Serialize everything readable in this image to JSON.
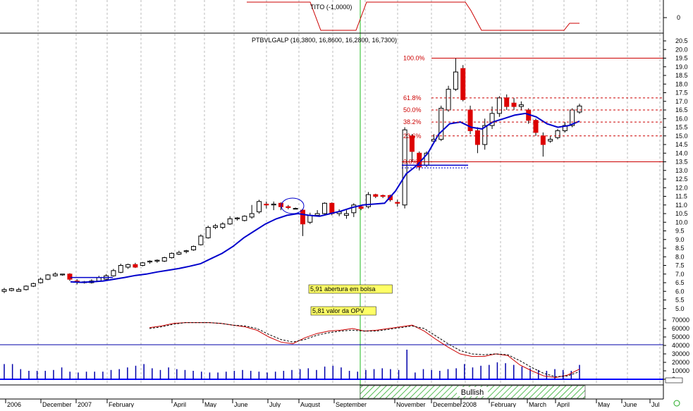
{
  "chart_data": [
    {
      "type": "line",
      "title": "TITO (-1,0000)",
      "yaxis_labels": [
        "0"
      ],
      "x": [
        "Dec 2006",
        "Jan 2007",
        "Feb 2007",
        "Mar 2007",
        "Apr 2007",
        "May 2007",
        "Jun 2007",
        "Jul 2007",
        "Aug 2007",
        "Sep 2007",
        "Oct 2007",
        "Nov 2007",
        "Dec 2007",
        "Jan 2008",
        "Feb 2008",
        "Mar 2008",
        "Apr 2008"
      ],
      "series": [
        {
          "values": [
            1,
            1,
            1,
            1,
            1,
            1,
            1,
            1,
            -1,
            -1,
            -1,
            1,
            1,
            -1,
            -1,
            -1,
            -1
          ],
          "color": "#cc0000"
        }
      ]
    },
    {
      "type": "candlestick",
      "title": "PTBVLGALP (16,3800, 16,8600, 16,2800, 16,7300)",
      "ylim": [
        4.5,
        20.5
      ],
      "yticks": [
        "20.5",
        "20.0",
        "19.5",
        "19.0",
        "18.5",
        "18.0",
        "17.5",
        "17.0",
        "16.5",
        "16.0",
        "15.5",
        "15.0",
        "14.5",
        "14.0",
        "13.5",
        "13.0",
        "12.5",
        "12.0",
        "11.5",
        "11.0",
        "10.5",
        "10.0",
        "9.5",
        "9.0",
        "8.5",
        "8.0",
        "7.5",
        "7.0",
        "6.5",
        "6.0",
        "5.5",
        "5.0"
      ],
      "x_labels": [
        "2006",
        "December",
        "2007",
        "February",
        "April",
        "May",
        "June",
        "July",
        "August",
        "September",
        "November",
        "December",
        "2008",
        "February",
        "March",
        "April",
        "May",
        "June",
        "Jul"
      ],
      "candles": [
        {
          "o": 6.0,
          "c": 6.1,
          "h": 6.2,
          "l": 5.9
        },
        {
          "o": 6.05,
          "c": 6.15,
          "h": 6.2,
          "l": 6.0
        },
        {
          "o": 6.0,
          "c": 6.1,
          "h": 6.2,
          "l": 6.0
        },
        {
          "o": 6.1,
          "c": 6.3,
          "h": 6.35,
          "l": 6.05
        },
        {
          "o": 6.3,
          "c": 6.45,
          "h": 6.5,
          "l": 6.25
        },
        {
          "o": 6.5,
          "c": 6.7,
          "h": 6.8,
          "l": 6.45
        },
        {
          "o": 6.7,
          "c": 6.95,
          "h": 7.0,
          "l": 6.65
        },
        {
          "o": 6.9,
          "c": 7.0,
          "h": 7.1,
          "l": 6.85
        },
        {
          "o": 6.95,
          "c": 7.0,
          "h": 7.0,
          "l": 6.9
        },
        {
          "o": 7.0,
          "c": 6.7,
          "h": 7.05,
          "l": 6.6
        },
        {
          "o": 6.6,
          "c": 6.55,
          "h": 6.7,
          "l": 6.4
        },
        {
          "o": 6.5,
          "c": 6.55,
          "h": 6.6,
          "l": 6.45
        },
        {
          "o": 6.5,
          "c": 6.6,
          "h": 6.7,
          "l": 6.45
        },
        {
          "o": 6.6,
          "c": 6.8,
          "h": 6.9,
          "l": 6.55
        },
        {
          "o": 6.7,
          "c": 6.9,
          "h": 7.0,
          "l": 6.65
        },
        {
          "o": 6.9,
          "c": 7.2,
          "h": 7.3,
          "l": 6.85
        },
        {
          "o": 7.1,
          "c": 7.5,
          "h": 7.6,
          "l": 7.05
        },
        {
          "o": 7.4,
          "c": 7.55,
          "h": 7.6,
          "l": 7.3
        },
        {
          "o": 7.55,
          "c": 7.4,
          "h": 7.65,
          "l": 7.35
        },
        {
          "o": 7.5,
          "c": 7.65,
          "h": 7.7,
          "l": 7.45
        },
        {
          "o": 7.7,
          "c": 7.75,
          "h": 7.8,
          "l": 7.6
        },
        {
          "o": 7.75,
          "c": 7.8,
          "h": 7.85,
          "l": 7.65
        },
        {
          "o": 7.75,
          "c": 7.95,
          "h": 8.0,
          "l": 7.7
        },
        {
          "o": 7.95,
          "c": 8.2,
          "h": 8.25,
          "l": 7.9
        },
        {
          "o": 8.15,
          "c": 8.25,
          "h": 8.35,
          "l": 8.1
        },
        {
          "o": 8.3,
          "c": 8.35,
          "h": 8.4,
          "l": 8.2
        },
        {
          "o": 8.4,
          "c": 8.6,
          "h": 8.65,
          "l": 8.35
        },
        {
          "o": 8.7,
          "c": 9.2,
          "h": 9.3,
          "l": 8.65
        },
        {
          "o": 9.1,
          "c": 9.7,
          "h": 9.8,
          "l": 9.05
        },
        {
          "o": 9.7,
          "c": 9.8,
          "h": 9.9,
          "l": 9.6
        },
        {
          "o": 9.7,
          "c": 9.9,
          "h": 10.0,
          "l": 9.6
        },
        {
          "o": 9.9,
          "c": 10.2,
          "h": 10.35,
          "l": 9.85
        },
        {
          "o": 10.2,
          "c": 10.25,
          "h": 10.3,
          "l": 10.1
        },
        {
          "o": 10.1,
          "c": 10.35,
          "h": 10.4,
          "l": 10.05
        },
        {
          "o": 10.3,
          "c": 10.5,
          "h": 11.0,
          "l": 10.2
        },
        {
          "o": 10.6,
          "c": 11.2,
          "h": 11.3,
          "l": 10.5
        },
        {
          "o": 11.05,
          "c": 11.0,
          "h": 11.2,
          "l": 10.8
        },
        {
          "o": 11.0,
          "c": 11.05,
          "h": 11.2,
          "l": 10.7
        },
        {
          "o": 11.1,
          "c": 10.9,
          "h": 11.15,
          "l": 10.7
        },
        {
          "o": 10.9,
          "c": 10.85,
          "h": 11.0,
          "l": 10.75
        },
        {
          "o": 10.8,
          "c": 10.8,
          "h": 10.85,
          "l": 10.75
        },
        {
          "o": 10.7,
          "c": 9.9,
          "h": 10.75,
          "l": 9.2
        },
        {
          "o": 10.0,
          "c": 10.4,
          "h": 10.55,
          "l": 9.9
        },
        {
          "o": 10.4,
          "c": 10.5,
          "h": 10.7,
          "l": 10.35
        },
        {
          "o": 10.5,
          "c": 11.1,
          "h": 11.15,
          "l": 10.4
        },
        {
          "o": 11.1,
          "c": 10.5,
          "h": 11.15,
          "l": 10.4
        },
        {
          "o": 10.5,
          "c": 10.6,
          "h": 10.75,
          "l": 10.35
        },
        {
          "o": 10.4,
          "c": 10.5,
          "h": 10.7,
          "l": 10.2
        },
        {
          "o": 10.55,
          "c": 11.0,
          "h": 11.1,
          "l": 10.3
        },
        {
          "o": 10.9,
          "c": 10.8,
          "h": 11.0,
          "l": 10.7
        },
        {
          "o": 10.9,
          "c": 11.6,
          "h": 11.75,
          "l": 10.8
        },
        {
          "o": 11.6,
          "c": 11.5,
          "h": 11.65,
          "l": 11.4
        },
        {
          "o": 11.55,
          "c": 11.5,
          "h": 11.6,
          "l": 11.4
        },
        {
          "o": 11.55,
          "c": 11.3,
          "h": 11.6,
          "l": 11.2
        },
        {
          "o": 11.15,
          "c": 11.1,
          "h": 11.3,
          "l": 10.9
        },
        {
          "o": 11.0,
          "c": 15.35,
          "h": 15.5,
          "l": 10.8
        },
        {
          "o": 15.0,
          "c": 14.1,
          "h": 15.1,
          "l": 13.5
        },
        {
          "o": 14.0,
          "c": 13.2,
          "h": 14.1,
          "l": 13.0
        },
        {
          "o": 13.3,
          "c": 14.0,
          "h": 14.1,
          "l": 13.2
        },
        {
          "o": 14.7,
          "c": 14.8,
          "h": 15.1,
          "l": 14.6
        },
        {
          "o": 14.8,
          "c": 16.6,
          "h": 16.75,
          "l": 14.7
        },
        {
          "o": 16.5,
          "c": 17.7,
          "h": 17.9,
          "l": 16.4
        },
        {
          "o": 17.7,
          "c": 18.7,
          "h": 19.5,
          "l": 17.6
        },
        {
          "o": 18.9,
          "c": 17.1,
          "h": 19.1,
          "l": 17.0
        },
        {
          "o": 16.5,
          "c": 15.3,
          "h": 16.75,
          "l": 15.1
        },
        {
          "o": 15.3,
          "c": 14.5,
          "h": 15.5,
          "l": 14.0
        },
        {
          "o": 14.5,
          "c": 15.6,
          "h": 16.0,
          "l": 14.2
        },
        {
          "o": 15.6,
          "c": 16.3,
          "h": 16.7,
          "l": 15.4
        },
        {
          "o": 16.3,
          "c": 17.2,
          "h": 17.3,
          "l": 16.1
        },
        {
          "o": 17.2,
          "c": 16.7,
          "h": 17.4,
          "l": 16.5
        },
        {
          "o": 16.9,
          "c": 16.7,
          "h": 17.2,
          "l": 16.5
        },
        {
          "o": 16.7,
          "c": 16.8,
          "h": 17.0,
          "l": 16.5
        },
        {
          "o": 16.5,
          "c": 15.9,
          "h": 16.6,
          "l": 15.7
        },
        {
          "o": 15.9,
          "c": 15.2,
          "h": 16.0,
          "l": 15.0
        },
        {
          "o": 15.0,
          "c": 14.5,
          "h": 15.2,
          "l": 13.8
        },
        {
          "o": 14.7,
          "c": 14.8,
          "h": 15.0,
          "l": 14.6
        },
        {
          "o": 14.9,
          "c": 15.3,
          "h": 15.4,
          "l": 14.8
        },
        {
          "o": 15.3,
          "c": 15.6,
          "h": 15.8,
          "l": 15.2
        },
        {
          "o": 15.6,
          "c": 16.5,
          "h": 16.6,
          "l": 15.5
        },
        {
          "o": 16.38,
          "c": 16.73,
          "h": 16.86,
          "l": 16.28
        }
      ],
      "moving_average": [
        6.55,
        6.52,
        6.55,
        6.6,
        6.7,
        6.8,
        6.92,
        7.0,
        7.12,
        7.22,
        7.32,
        7.45,
        7.6,
        7.9,
        8.2,
        8.6,
        9.1,
        9.5,
        9.9,
        10.2,
        10.4,
        10.5,
        10.4,
        10.35,
        10.5,
        10.65,
        10.85,
        11.0,
        11.05,
        11.1,
        11.8,
        12.8,
        13.3,
        14.0,
        15.1,
        15.7,
        15.8,
        15.5,
        15.4,
        15.8,
        16.0,
        16.2,
        16.3,
        16.1,
        15.7,
        15.5,
        15.6,
        15.85
      ],
      "fibonacci": {
        "levels": [
          {
            "label": "100.0%",
            "value": 19.5
          },
          {
            "label": "61.8%",
            "value": 17.2
          },
          {
            "label": "50.0%",
            "value": 16.5
          },
          {
            "label": "38.2%",
            "value": 15.8
          },
          {
            "label": "23.6%",
            "value": 15.0
          },
          {
            "label": "0.0%",
            "value": 13.5
          }
        ]
      },
      "reference_lines": [
        {
          "label": "5,91 abertura em bolsa",
          "value": 13.3
        },
        {
          "label": "5,81 valor da OPV",
          "value": 13.15
        }
      ],
      "annotations": [
        "5,91 abertura em bolsa",
        "5,81 valor da OPV"
      ]
    },
    {
      "type": "line",
      "yticks": [
        "70000",
        "60000",
        "50000",
        "40000",
        "30000",
        "20000",
        "10000",
        "0"
      ],
      "ylim": [
        0,
        75000
      ],
      "series": [
        {
          "style": "solid",
          "color": "#cc0000",
          "values": [
            61000,
            63000,
            66000,
            67000,
            67000,
            67000,
            66000,
            64000,
            62000,
            58000,
            50000,
            44000,
            42000,
            49000,
            54000,
            57000,
            58000,
            60000,
            57000,
            58000,
            60000,
            62000,
            64000,
            57000,
            47000,
            38000,
            30000,
            27000,
            27000,
            30000,
            28000,
            17000,
            10000,
            4000,
            2000,
            5000,
            12000
          ]
        },
        {
          "style": "dashed",
          "color": "#000000",
          "values": [
            60000,
            62000,
            65000,
            67000,
            67000,
            67000,
            66000,
            64000,
            63000,
            60000,
            53000,
            47000,
            44000,
            47000,
            52000,
            55000,
            57000,
            58000,
            57000,
            57000,
            59000,
            61000,
            63000,
            60000,
            51000,
            42000,
            34000,
            30000,
            29000,
            30000,
            29000,
            22000,
            14000,
            7000,
            3000,
            4000,
            9000
          ]
        }
      ],
      "volume": [
        18000,
        18000,
        12000,
        10000,
        10000,
        10000,
        11000,
        14000,
        9000,
        8000,
        9000,
        9000,
        9000,
        11000,
        12000,
        14000,
        16000,
        18000,
        13000,
        11000,
        14000,
        12000,
        11000,
        10000,
        9000,
        8000,
        8000,
        9000,
        10000,
        11000,
        10000,
        9000,
        8000,
        9000,
        10000,
        11000,
        12000,
        13000,
        11000,
        15000,
        16000,
        14000,
        10000,
        9000,
        11000,
        12000,
        13000,
        12000,
        11000,
        35000,
        8000,
        12000,
        11000,
        10000,
        12000,
        13000,
        18000,
        14000,
        16000,
        17000,
        20000,
        19000,
        17000,
        15000,
        13000,
        11000,
        10000,
        12000,
        11000,
        10000,
        17000
      ]
    }
  ],
  "labels": {
    "bullish": "Bullish"
  }
}
